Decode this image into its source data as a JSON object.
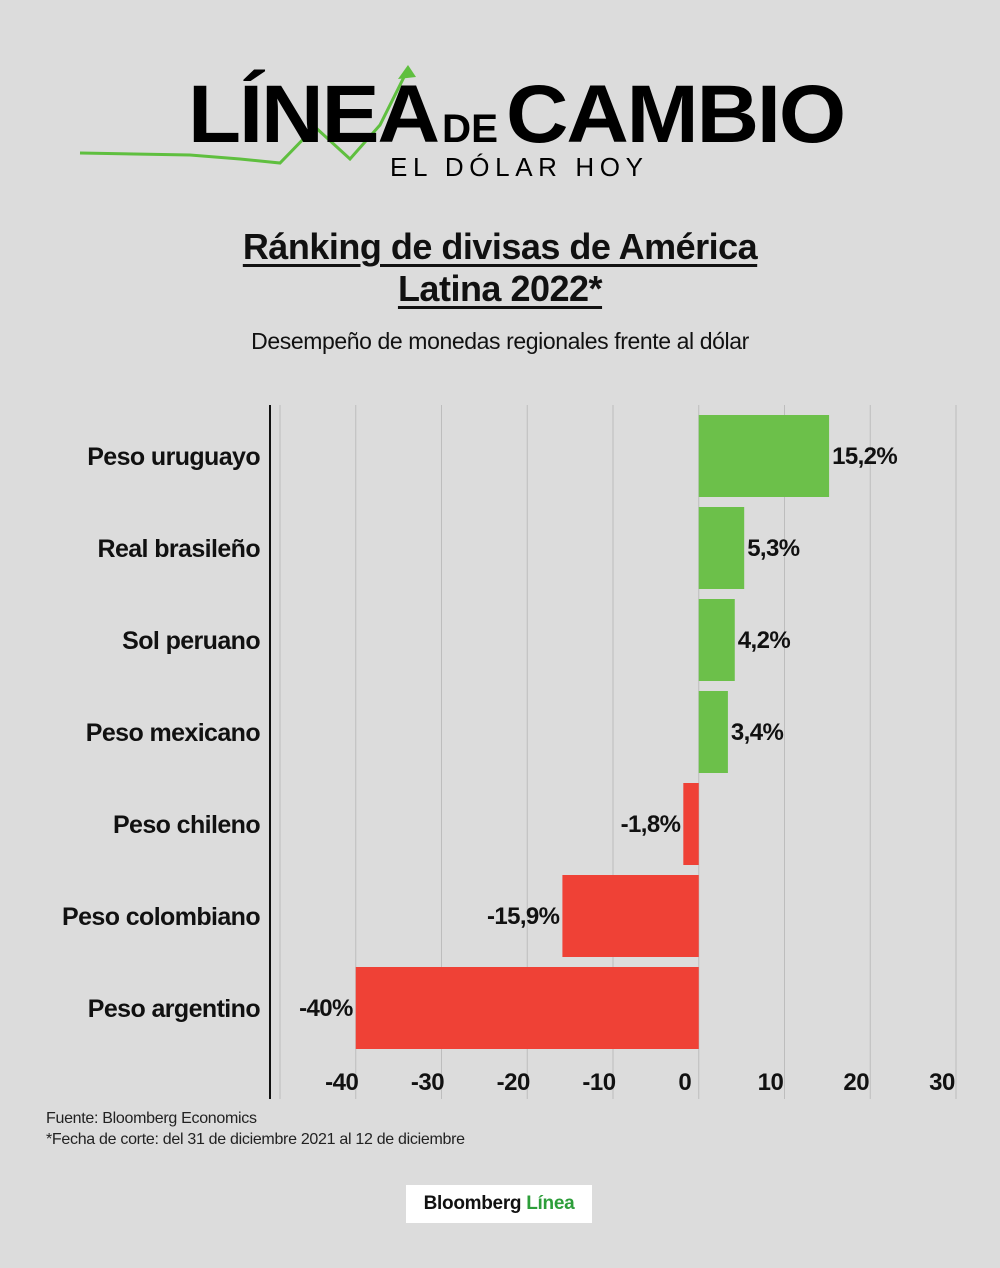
{
  "header": {
    "logo_main_left": "LÍNEA",
    "logo_connector": "DE",
    "logo_main_right": "CAMBIO",
    "logo_tagline": "EL DÓLAR HOY",
    "title_line1": "Ránking de divisas de América",
    "title_line2": "Latina 2022*",
    "subtitle": "Desempeño de monedas regionales frente al dólar"
  },
  "chart_data": {
    "type": "bar",
    "orientation": "horizontal",
    "categories": [
      "Peso uruguayo",
      "Real brasileño",
      "Sol peruano",
      "Peso mexicano",
      "Peso chileno",
      "Peso colombiano",
      "Peso argentino"
    ],
    "values": [
      15.2,
      5.3,
      4.2,
      3.4,
      -1.8,
      -15.9,
      -40
    ],
    "value_labels": [
      "15,2%",
      "5,3%",
      "4,2%",
      "3,4%",
      "-1,8%",
      "-15,9%",
      "-40%"
    ],
    "xlim": [
      -50,
      30
    ],
    "xticks": [
      -40,
      -30,
      -20,
      -10,
      0,
      10,
      20,
      30
    ],
    "xtick_labels": [
      "-40",
      "-30",
      "-20",
      "-10",
      "0",
      "10",
      "20",
      "30"
    ],
    "positive_color": "#6cc04a",
    "negative_color": "#ef4136",
    "grid": true
  },
  "footer": {
    "source": "Fuente: Bloomberg Economics",
    "note": "*Fecha de corte: del 31 de diciembre 2021 al 12 de diciembre",
    "brand_part1": "Bloomberg",
    "brand_part2": "Línea",
    "brand_accent": "#2d9e3a"
  }
}
